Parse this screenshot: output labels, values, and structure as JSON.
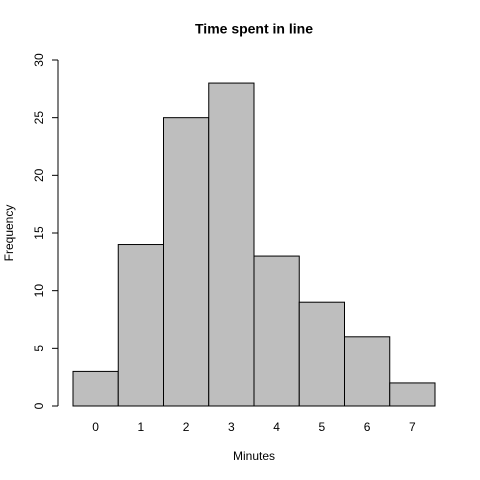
{
  "chart_data": {
    "type": "bar",
    "title": "Time spent in line",
    "xlabel": "Minutes",
    "ylabel": "Frequency",
    "categories": [
      "0",
      "1",
      "2",
      "3",
      "4",
      "5",
      "6",
      "7"
    ],
    "values": [
      3,
      14,
      25,
      28,
      13,
      9,
      6,
      2
    ],
    "color": "#bebebe",
    "edgecolor": "#000000",
    "ylim": [
      0,
      30
    ],
    "yticks": [
      0,
      5,
      10,
      15,
      20,
      25,
      30
    ],
    "grid": false
  }
}
